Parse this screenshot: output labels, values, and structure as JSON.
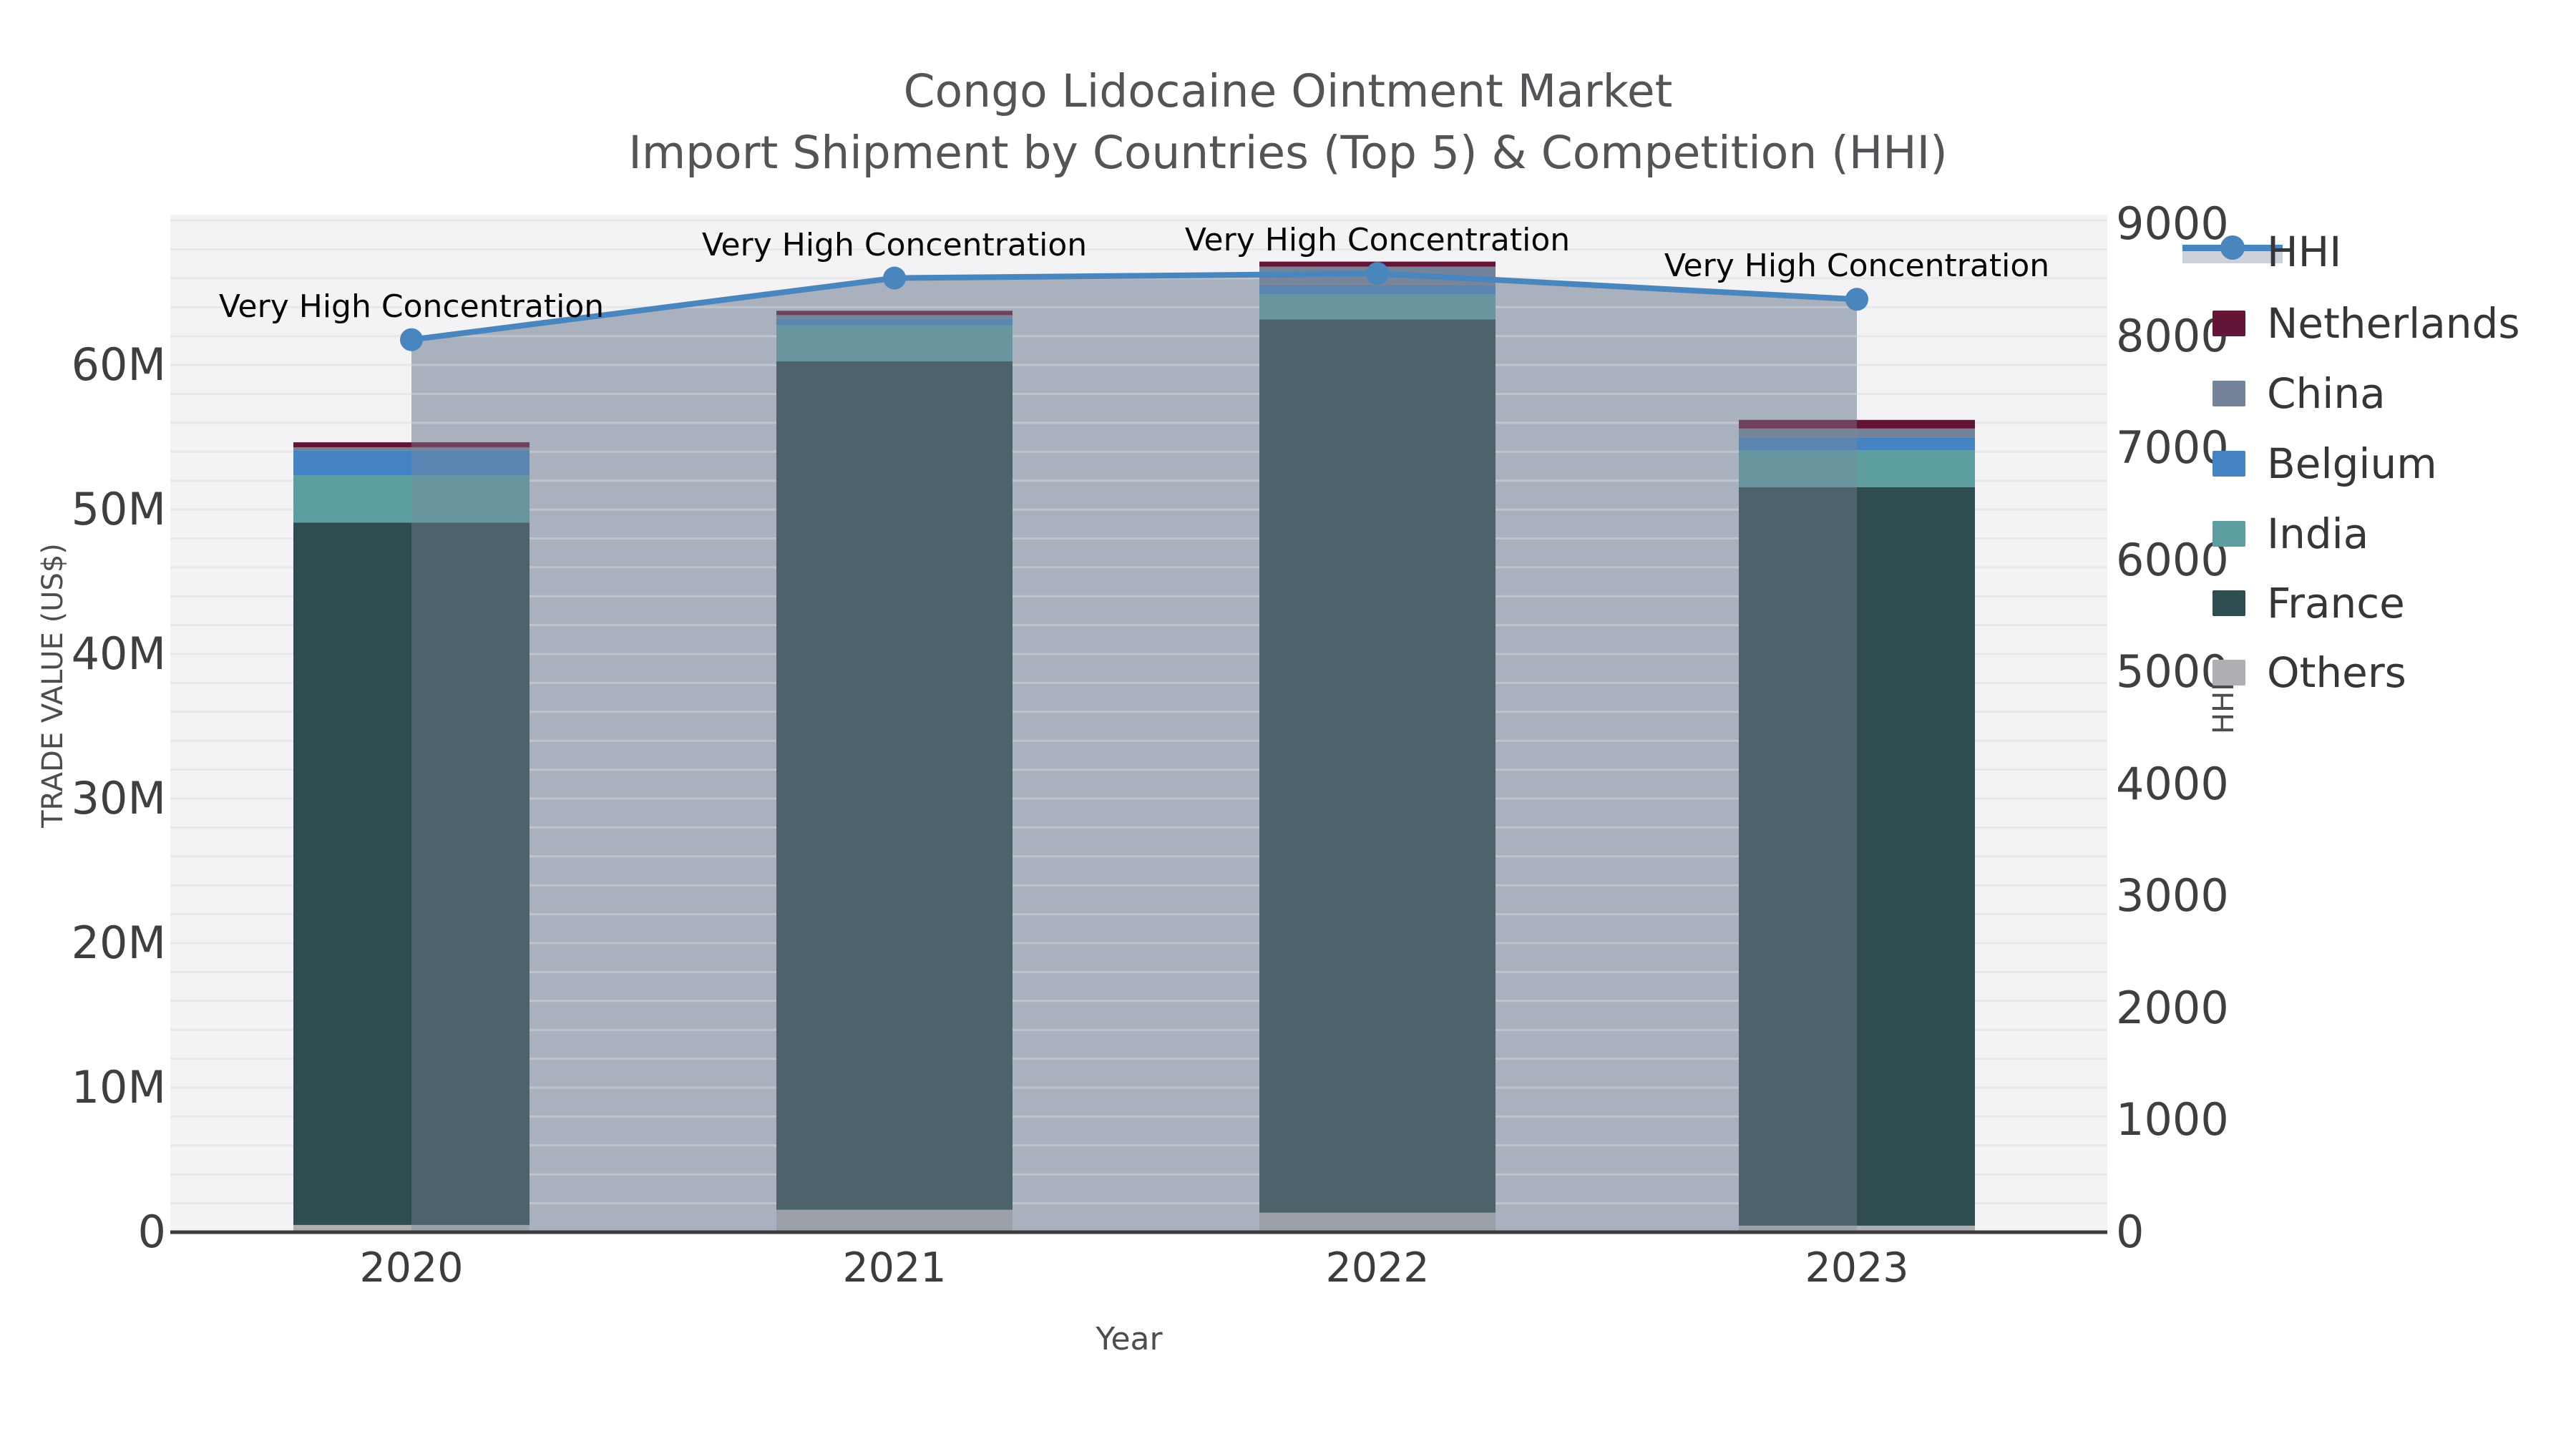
{
  "title": "Congo Lidocaine Ointment Market",
  "subtitle": "Import Shipment by Countries (Top 5) & Competition (HHI)",
  "chart_data": {
    "type": "bar",
    "subtype": "stacked-bars-with-line-overlay",
    "title": "Congo Lidocaine Ointment Market",
    "subtitle": "Import Shipment by Countries (Top 5) & Competition (HHI)",
    "xlabel": "Year",
    "ylabel": "TRADE VALUE (US$)",
    "y2label": "HHI",
    "categories": [
      "2020",
      "2021",
      "2022",
      "2023"
    ],
    "values_unit": "million US$",
    "series": [
      {
        "name": "Others",
        "color": "#adafb2",
        "values": [
          0.5,
          1.55,
          1.35,
          0.45
        ]
      },
      {
        "name": "France",
        "color": "#2f4c50",
        "values": [
          48.6,
          58.7,
          61.8,
          51.1
        ]
      },
      {
        "name": "India",
        "color": "#5d9ea1",
        "values": [
          3.25,
          2.5,
          1.75,
          2.55
        ]
      },
      {
        "name": "Belgium",
        "color": "#4484c2",
        "values": [
          1.75,
          0.45,
          0.6,
          0.9
        ]
      },
      {
        "name": "China",
        "color": "#72839a",
        "values": [
          0.2,
          0.25,
          1.3,
          0.6
        ]
      },
      {
        "name": "Netherlands",
        "color": "#641537",
        "values": [
          0.35,
          0.3,
          0.35,
          0.6
        ]
      }
    ],
    "line_series": {
      "name": "HHI",
      "axis": "right",
      "color": "#4a86be",
      "area_color": "rgba(126,138,156,0.38)",
      "values": [
        7970,
        8520,
        8560,
        8330
      ]
    },
    "annotation_text": "Very High Concentration",
    "annotations_per_point": [
      "Very High Concentration",
      "Very High Concentration",
      "Very High Concentration",
      "Very High Concentration"
    ],
    "ylim": [
      0,
      70.4
    ],
    "y2lim": [
      0,
      9086
    ],
    "ytick_values": [
      0,
      10,
      20,
      30,
      40,
      50,
      60
    ],
    "ytick_labels": [
      "0",
      "10M",
      "20M",
      "30M",
      "40M",
      "50M",
      "60M"
    ],
    "y2tick_values": [
      0,
      1000,
      2000,
      3000,
      4000,
      5000,
      6000,
      7000,
      8000,
      9000
    ],
    "y2tick_labels": [
      "0",
      "1000",
      "2000",
      "3000",
      "4000",
      "5000",
      "6000",
      "7000",
      "8000",
      "9000"
    ],
    "grid": {
      "on": true,
      "minor_step_millions": 2
    },
    "legend": {
      "position": "right",
      "items": [
        "HHI",
        "Netherlands",
        "China",
        "Belgium",
        "India",
        "France",
        "Others"
      ]
    },
    "colors": {
      "plot_background": "#f3f3f5",
      "gridline": "#e7e8ea",
      "axis_line": "#3b3b3b",
      "tick_text": "#3f3f3f",
      "title_text": "#545458"
    }
  }
}
